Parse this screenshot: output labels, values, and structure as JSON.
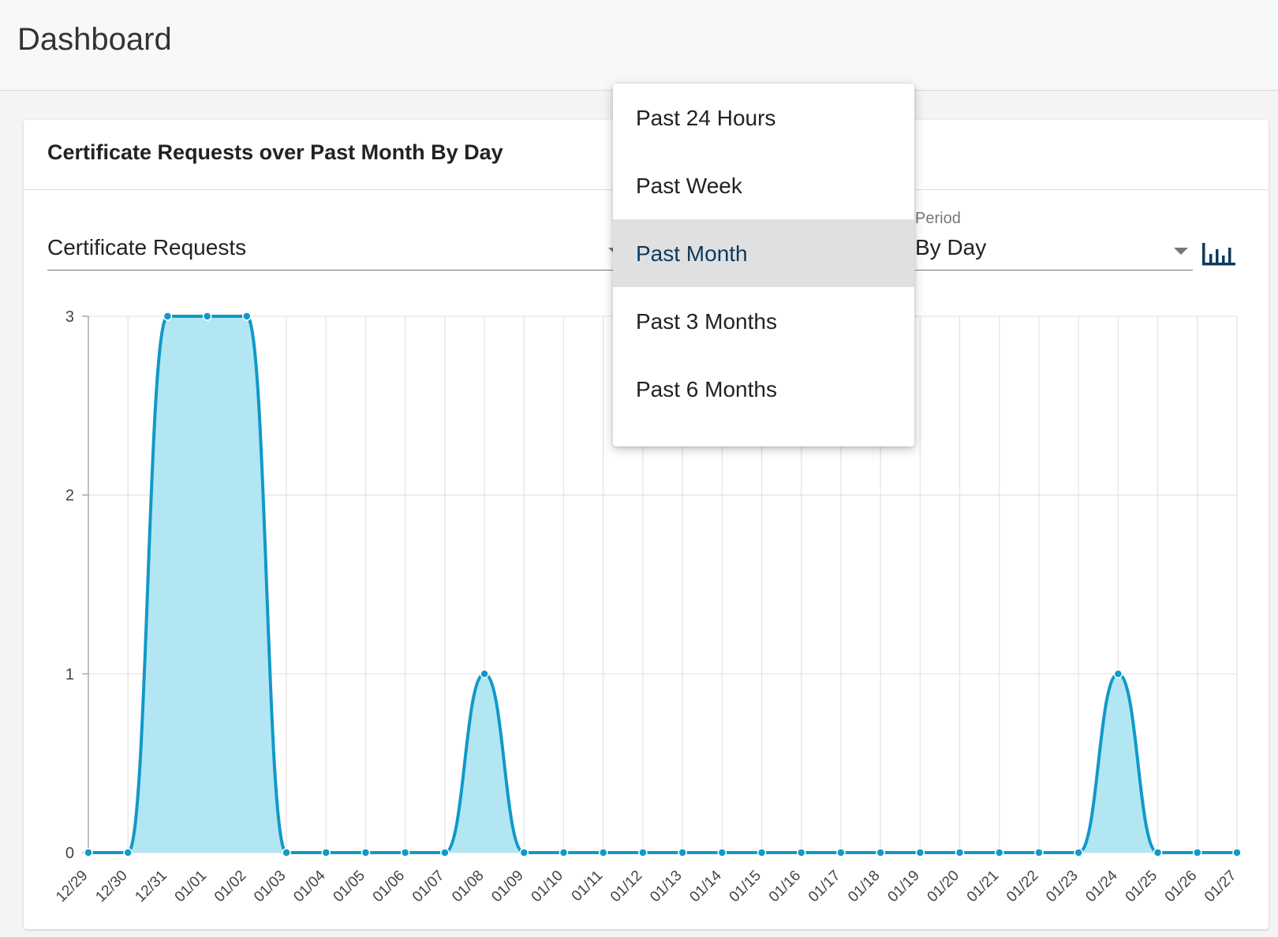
{
  "header": {
    "title": "Dashboard"
  },
  "card": {
    "title": "Certificate Requests over Past Month By Day",
    "metric_select": {
      "value": "Certificate Requests"
    },
    "period_select": {
      "label": "Period",
      "value": "By Day"
    },
    "chart_type_icon": "bar-chart-icon"
  },
  "dropdown": {
    "items": [
      {
        "label": "Past 24 Hours"
      },
      {
        "label": "Past Week"
      },
      {
        "label": "Past Month",
        "selected": true
      },
      {
        "label": "Past 3 Months"
      },
      {
        "label": "Past 6 Months"
      }
    ]
  },
  "colors": {
    "line": "#1199c9",
    "fill": "#b3e6f3",
    "accent": "#0d3a5e"
  },
  "chart_data": {
    "type": "area",
    "categories": [
      "12/29",
      "12/30",
      "12/31",
      "01/01",
      "01/02",
      "01/03",
      "01/04",
      "01/05",
      "01/06",
      "01/07",
      "01/08",
      "01/09",
      "01/10",
      "01/11",
      "01/12",
      "01/13",
      "01/14",
      "01/15",
      "01/16",
      "01/17",
      "01/18",
      "01/19",
      "01/20",
      "01/21",
      "01/22",
      "01/23",
      "01/24",
      "01/25",
      "01/26",
      "01/27"
    ],
    "values": [
      0,
      0,
      3,
      3,
      3,
      0,
      0,
      0,
      0,
      0,
      1,
      0,
      0,
      0,
      0,
      0,
      0,
      0,
      0,
      0,
      0,
      0,
      0,
      0,
      0,
      0,
      1,
      0,
      0,
      0
    ],
    "yticks": [
      0,
      1,
      2,
      3
    ],
    "ylim": [
      0,
      3
    ],
    "grid": true,
    "legend": "none"
  }
}
